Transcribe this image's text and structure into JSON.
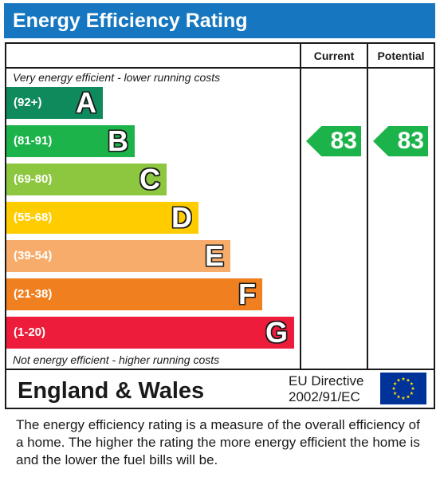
{
  "title": "Energy Efficiency Rating",
  "columns": {
    "current": "Current",
    "potential": "Potential"
  },
  "notes": {
    "top": "Very energy efficient - lower running costs",
    "bottom": "Not energy efficient - higher running costs"
  },
  "footer": {
    "region": "England & Wales",
    "directive_line1": "EU Directive",
    "directive_line2": "2002/91/EC"
  },
  "description": "The energy efficiency rating is a measure of the overall efficiency of a home.  The higher the rating the more energy efficient the home is and the lower the fuel bills will be.",
  "chart_data": {
    "type": "bar",
    "title": "Energy Efficiency Rating",
    "categories": [
      "A",
      "B",
      "C",
      "D",
      "E",
      "F",
      "G"
    ],
    "bands": [
      {
        "letter": "A",
        "range": "(92+)",
        "min": 92,
        "max": 100,
        "color": "#0f8a5c"
      },
      {
        "letter": "B",
        "range": "(81-91)",
        "min": 81,
        "max": 91,
        "color": "#1db34b"
      },
      {
        "letter": "C",
        "range": "(69-80)",
        "min": 69,
        "max": 80,
        "color": "#8dc63f"
      },
      {
        "letter": "D",
        "range": "(55-68)",
        "min": 55,
        "max": 68,
        "color": "#ffcc00"
      },
      {
        "letter": "E",
        "range": "(39-54)",
        "min": 39,
        "max": 54,
        "color": "#f7ac6b"
      },
      {
        "letter": "F",
        "range": "(21-38)",
        "min": 21,
        "max": 38,
        "color": "#f0801f"
      },
      {
        "letter": "G",
        "range": "(1-20)",
        "min": 1,
        "max": 20,
        "color": "#ee1c3b"
      }
    ],
    "series": [
      {
        "name": "Current",
        "value": 83,
        "band": "B"
      },
      {
        "name": "Potential",
        "value": 83,
        "band": "B"
      }
    ],
    "arrow_color": "#1db34b"
  }
}
